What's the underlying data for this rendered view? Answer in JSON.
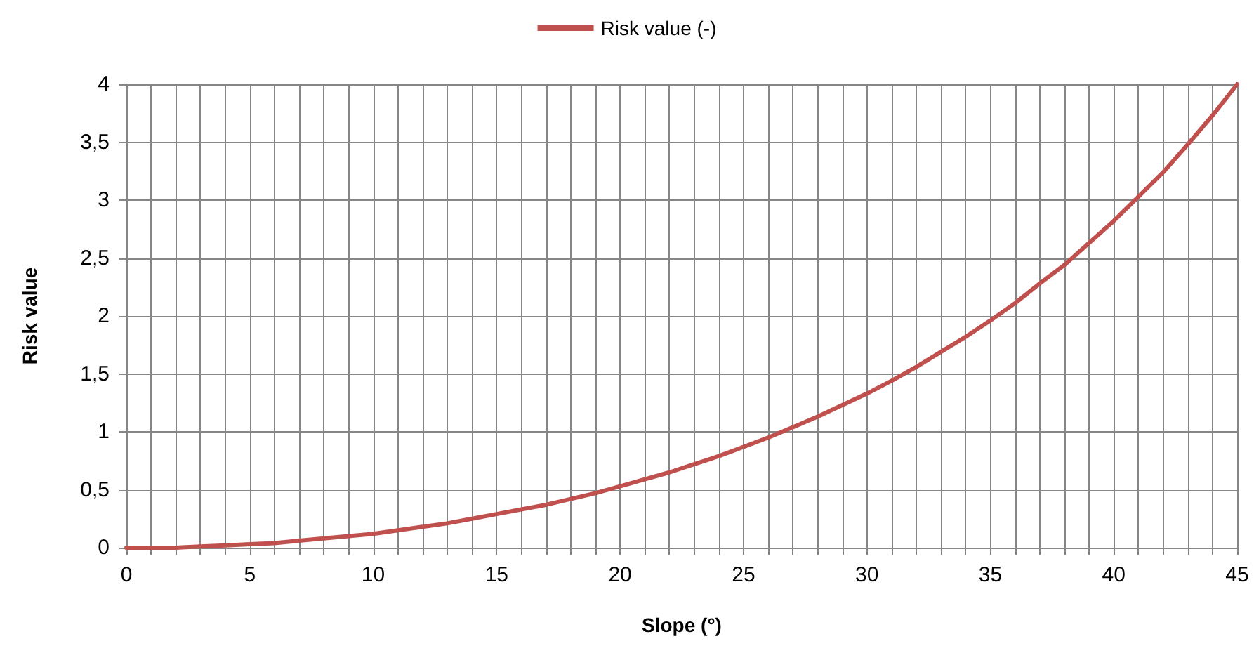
{
  "chart_data": {
    "type": "line",
    "xlabel": "Slope (°)",
    "ylabel": "Risk value",
    "x": [
      0,
      1,
      2,
      3,
      4,
      5,
      6,
      7,
      8,
      9,
      10,
      11,
      12,
      13,
      14,
      15,
      16,
      17,
      18,
      19,
      20,
      21,
      22,
      23,
      24,
      25,
      26,
      27,
      28,
      29,
      30,
      31,
      32,
      33,
      34,
      35,
      36,
      37,
      38,
      39,
      40,
      41,
      42,
      43,
      44,
      45
    ],
    "series": [
      {
        "name": "Risk value (-)",
        "color": "#c0504d",
        "values": [
          0,
          0,
          0,
          0.01,
          0.02,
          0.03,
          0.04,
          0.06,
          0.08,
          0.1,
          0.12,
          0.15,
          0.18,
          0.21,
          0.25,
          0.29,
          0.33,
          0.37,
          0.42,
          0.47,
          0.53,
          0.59,
          0.65,
          0.72,
          0.79,
          0.87,
          0.95,
          1.04,
          1.13,
          1.23,
          1.33,
          1.44,
          1.56,
          1.69,
          1.82,
          1.96,
          2.11,
          2.28,
          2.44,
          2.63,
          2.82,
          3.03,
          3.24,
          3.48,
          3.73,
          4.0
        ]
      }
    ],
    "xlim": [
      0,
      45
    ],
    "xticks": [
      0,
      {
        "value": 1,
        "label": null
      },
      {
        "value": 2,
        "label": null
      },
      {
        "value": 3,
        "label": null
      },
      {
        "value": 4,
        "label": null
      },
      5,
      {
        "value": 6,
        "label": null
      },
      {
        "value": 7,
        "label": null
      },
      {
        "value": 8,
        "label": null
      },
      {
        "value": 9,
        "label": null
      },
      10,
      {
        "value": 11,
        "label": null
      },
      {
        "value": 12,
        "label": null
      },
      {
        "value": 13,
        "label": null
      },
      {
        "value": 14,
        "label": null
      },
      15,
      {
        "value": 16,
        "label": null
      },
      {
        "value": 17,
        "label": null
      },
      {
        "value": 18,
        "label": null
      },
      {
        "value": 19,
        "label": null
      },
      20,
      {
        "value": 21,
        "label": null
      },
      {
        "value": 22,
        "label": null
      },
      {
        "value": 23,
        "label": null
      },
      {
        "value": 24,
        "label": null
      },
      25,
      {
        "value": 26,
        "label": null
      },
      {
        "value": 27,
        "label": null
      },
      {
        "value": 28,
        "label": null
      },
      {
        "value": 29,
        "label": null
      },
      30,
      {
        "value": 31,
        "label": null
      },
      {
        "value": 32,
        "label": null
      },
      {
        "value": 33,
        "label": null
      },
      {
        "value": 34,
        "label": null
      },
      35,
      {
        "value": 36,
        "label": null
      },
      {
        "value": 37,
        "label": null
      },
      {
        "value": 38,
        "label": null
      },
      {
        "value": 39,
        "label": null
      },
      40,
      {
        "value": 41,
        "label": null
      },
      {
        "value": 42,
        "label": null
      },
      {
        "value": 43,
        "label": null
      },
      {
        "value": 44,
        "label": null
      },
      45
    ],
    "ylim": [
      0,
      4
    ],
    "yticks": [
      0,
      {
        "value": 0.5,
        "label": "0,5"
      },
      1,
      {
        "value": 1.5,
        "label": "1,5"
      },
      2,
      {
        "value": 2.5,
        "label": "2,5"
      },
      3,
      {
        "value": 3.5,
        "label": "3,5"
      },
      4
    ],
    "grid": true,
    "legend": "top",
    "marker": "none",
    "line_style": "solid"
  }
}
